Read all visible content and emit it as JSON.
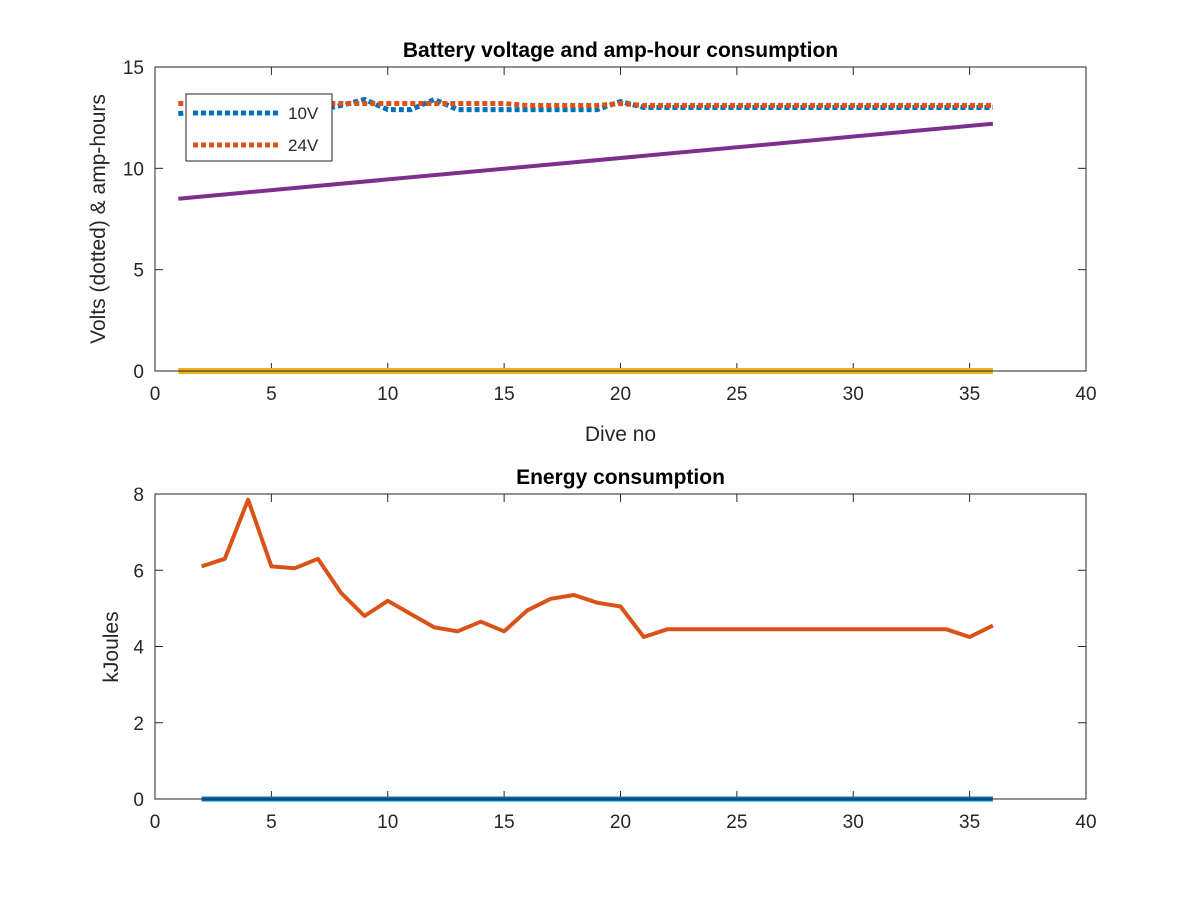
{
  "figure": {
    "background": "#ffffff"
  },
  "chart_data": [
    {
      "type": "line",
      "title": "Battery voltage and amp-hour consumption",
      "xlabel": "Dive no",
      "ylabel": "Volts (dotted) & amp-hours",
      "xlim": [
        0,
        40
      ],
      "ylim": [
        0,
        15
      ],
      "xticks": [
        "0",
        "5",
        "10",
        "15",
        "20",
        "25",
        "30",
        "35",
        "40"
      ],
      "yticks": [
        "0",
        "5",
        "10",
        "15"
      ],
      "grid": false,
      "legend": {
        "placement": "top-left",
        "entries": [
          "10V",
          "24V"
        ]
      },
      "series": [
        {
          "name": "10V",
          "style": "dotted",
          "color": "#0072BD",
          "x": [
            1,
            2,
            3,
            4,
            5,
            6,
            7,
            8,
            9,
            10,
            11,
            12,
            13,
            14,
            15,
            16,
            17,
            18,
            19,
            20,
            21,
            22,
            23,
            24,
            25,
            26,
            27,
            28,
            29,
            30,
            31,
            32,
            33,
            34,
            35,
            36
          ],
          "y": [
            12.7,
            12.8,
            12.8,
            12.8,
            12.9,
            12.9,
            12.9,
            13.1,
            13.4,
            12.9,
            12.9,
            13.4,
            12.9,
            12.9,
            12.9,
            12.9,
            12.9,
            12.9,
            12.9,
            13.3,
            13.0,
            13.0,
            13.0,
            13.0,
            13.0,
            13.0,
            13.0,
            13.0,
            13.0,
            13.0,
            13.0,
            13.0,
            13.0,
            13.0,
            13.0,
            13.0
          ]
        },
        {
          "name": "24V",
          "style": "dotted",
          "color": "#D95319",
          "x": [
            1,
            2,
            3,
            4,
            5,
            6,
            7,
            8,
            9,
            10,
            11,
            12,
            13,
            14,
            15,
            16,
            17,
            18,
            19,
            20,
            21,
            22,
            23,
            24,
            25,
            26,
            27,
            28,
            29,
            30,
            31,
            32,
            33,
            34,
            35,
            36
          ],
          "y": [
            13.2,
            13.2,
            13.2,
            13.2,
            13.2,
            13.2,
            13.2,
            13.2,
            13.2,
            13.2,
            13.2,
            13.2,
            13.2,
            13.2,
            13.2,
            13.1,
            13.1,
            13.1,
            13.1,
            13.2,
            13.1,
            13.1,
            13.1,
            13.1,
            13.1,
            13.1,
            13.1,
            13.1,
            13.1,
            13.1,
            13.1,
            13.1,
            13.1,
            13.1,
            13.1,
            13.1
          ]
        },
        {
          "style": "solid",
          "color": "#7E2F8E",
          "x": [
            1,
            36
          ],
          "y": [
            8.5,
            12.2
          ]
        },
        {
          "style": "solid",
          "color": "#EDB120",
          "x": [
            1,
            36
          ],
          "y": [
            0,
            0
          ]
        }
      ]
    },
    {
      "type": "line",
      "title": "Energy consumption",
      "xlabel": "",
      "ylabel": "kJoules",
      "xlim": [
        0,
        40
      ],
      "ylim": [
        0,
        8
      ],
      "xticks": [
        "0",
        "5",
        "10",
        "15",
        "20",
        "25",
        "30",
        "35",
        "40"
      ],
      "yticks": [
        "0",
        "2",
        "4",
        "6",
        "8"
      ],
      "grid": false,
      "series": [
        {
          "style": "solid",
          "color": "#D95319",
          "x": [
            2,
            3,
            4,
            5,
            6,
            7,
            8,
            9,
            10,
            11,
            12,
            13,
            14,
            15,
            16,
            17,
            18,
            19,
            20,
            21,
            22,
            23,
            24,
            25,
            26,
            27,
            28,
            29,
            30,
            31,
            32,
            33,
            34,
            35,
            36
          ],
          "y": [
            6.1,
            6.3,
            7.85,
            6.1,
            6.05,
            6.3,
            5.4,
            4.8,
            5.2,
            4.85,
            4.5,
            4.4,
            4.65,
            4.4,
            4.95,
            5.25,
            5.35,
            5.15,
            5.05,
            4.25,
            4.45,
            4.45,
            4.45,
            4.45,
            4.45,
            4.45,
            4.45,
            4.45,
            4.45,
            4.45,
            4.45,
            4.45,
            4.45,
            4.25,
            4.55
          ]
        },
        {
          "style": "solid",
          "color": "#0072BD",
          "x": [
            2,
            36
          ],
          "y": [
            0,
            0
          ]
        }
      ]
    }
  ]
}
